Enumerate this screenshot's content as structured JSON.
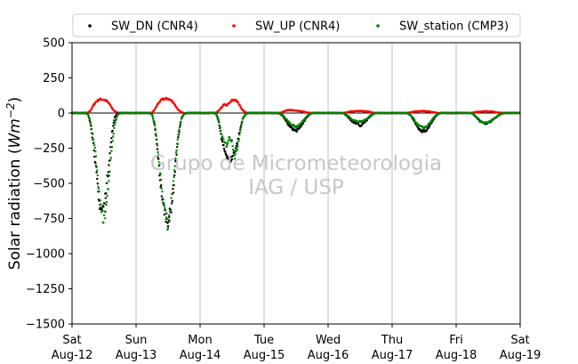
{
  "chart_data": {
    "type": "scatter",
    "title": "",
    "xlabel": "",
    "ylabel": "Solar radiation ($Wm{-2}$)",
    "ylabel_parts": {
      "main": "Solar radiation (",
      "math": "Wm",
      "sup": "−2",
      "close": ")"
    },
    "ylim": [
      -1500,
      500
    ],
    "xlim": [
      "2023-08-12",
      "2023-08-19"
    ],
    "y_ticks": [
      500,
      250,
      0,
      -250,
      -500,
      -750,
      -1000,
      -1250,
      -1500
    ],
    "y_tick_labels": [
      "500",
      "250",
      "0",
      "−250",
      "−500",
      "−750",
      "−1000",
      "−1250",
      "−1500"
    ],
    "x_tick_labels": [
      [
        "Sat",
        "Aug-12"
      ],
      [
        "Sun",
        "Aug-13"
      ],
      [
        "Mon",
        "Aug-14"
      ],
      [
        "Tue",
        "Aug-15"
      ],
      [
        "Wed",
        "Aug-16"
      ],
      [
        "Thu",
        "Aug-17"
      ],
      [
        "Fri",
        "Aug-18"
      ],
      [
        "Sat",
        "Aug-19"
      ]
    ],
    "grid": "vertical",
    "zero_line": true,
    "legend": {
      "placement": "top",
      "ncol": 3
    },
    "watermark": [
      "Grupo de Micrometeorologia",
      "IAG / USP"
    ],
    "days": [
      "Aug-12",
      "Aug-13",
      "Aug-14",
      "Aug-15",
      "Aug-16",
      "Aug-17",
      "Aug-18"
    ],
    "series": [
      {
        "name": "SW_DN (CNR4)",
        "color": "#000000",
        "x_hours": [
          0,
          5,
          6,
          7,
          8,
          9,
          10,
          11,
          12,
          13,
          14,
          15,
          16,
          17,
          18,
          19,
          24,
          29,
          30,
          31,
          32,
          33,
          34,
          35,
          36,
          37,
          38,
          39,
          40,
          41,
          42,
          43,
          48,
          53,
          54,
          55,
          56,
          57,
          58,
          59,
          60,
          61,
          62,
          63,
          64,
          65,
          66,
          67,
          72,
          77,
          78,
          79,
          80,
          81,
          82,
          83,
          84,
          85,
          86,
          87,
          88,
          89,
          90,
          91,
          96,
          101,
          102,
          103,
          104,
          105,
          106,
          107,
          108,
          109,
          110,
          111,
          112,
          113,
          114,
          115,
          120,
          125,
          126,
          127,
          128,
          129,
          130,
          131,
          132,
          133,
          134,
          135,
          136,
          137,
          138,
          139,
          144,
          149,
          150,
          151,
          152,
          153,
          154,
          155,
          156,
          157,
          158,
          159,
          160,
          161,
          162,
          163,
          168
        ],
        "values": [
          0,
          0,
          -10,
          -80,
          -220,
          -400,
          -620,
          -690,
          -660,
          -510,
          -320,
          -140,
          -30,
          -5,
          0,
          0,
          0,
          0,
          -10,
          -90,
          -260,
          -470,
          -640,
          -720,
          -760,
          -700,
          -540,
          -320,
          -150,
          -40,
          -5,
          0,
          0,
          0,
          -5,
          -60,
          -180,
          -260,
          -300,
          -340,
          -320,
          -270,
          -210,
          -120,
          -40,
          -10,
          0,
          0,
          0,
          0,
          -5,
          -20,
          -50,
          -80,
          -100,
          -120,
          -130,
          -110,
          -90,
          -60,
          -30,
          -10,
          0,
          0,
          0,
          0,
          -3,
          -20,
          -40,
          -60,
          -70,
          -80,
          -90,
          -80,
          -60,
          -40,
          -20,
          -5,
          0,
          0,
          0,
          0,
          -3,
          -20,
          -50,
          -80,
          -110,
          -130,
          -130,
          -120,
          -90,
          -60,
          -30,
          -10,
          0,
          0,
          0,
          0,
          -3,
          -20,
          -40,
          -60,
          -70,
          -75,
          -70,
          -60,
          -45,
          -30,
          -15,
          -5,
          0,
          0,
          0
        ]
      },
      {
        "name": "SW_UP (CNR4)",
        "color": "#ff0000",
        "x_hours": [
          0,
          5,
          6,
          7,
          8,
          9,
          10,
          11,
          12,
          13,
          14,
          15,
          16,
          17,
          18,
          19,
          24,
          29,
          30,
          31,
          32,
          33,
          34,
          35,
          36,
          37,
          38,
          39,
          40,
          41,
          42,
          43,
          48,
          53,
          54,
          55,
          56,
          57,
          58,
          59,
          60,
          61,
          62,
          63,
          64,
          65,
          66,
          67,
          72,
          77,
          78,
          79,
          80,
          81,
          82,
          83,
          84,
          85,
          86,
          87,
          88,
          89,
          90,
          91,
          96,
          101,
          102,
          103,
          104,
          105,
          106,
          107,
          108,
          109,
          110,
          111,
          112,
          113,
          114,
          115,
          120,
          125,
          126,
          127,
          128,
          129,
          130,
          131,
          132,
          133,
          134,
          135,
          136,
          137,
          138,
          139,
          144,
          149,
          150,
          151,
          152,
          153,
          154,
          155,
          156,
          157,
          158,
          159,
          160,
          161,
          162,
          163,
          168
        ],
        "values": [
          0,
          0,
          2,
          20,
          55,
          80,
          95,
          98,
          95,
          85,
          65,
          35,
          12,
          2,
          0,
          0,
          0,
          0,
          2,
          25,
          60,
          85,
          98,
          102,
          100,
          92,
          75,
          45,
          18,
          5,
          0,
          0,
          0,
          0,
          2,
          15,
          40,
          60,
          55,
          70,
          90,
          95,
          80,
          50,
          20,
          5,
          0,
          0,
          0,
          0,
          2,
          8,
          15,
          20,
          22,
          20,
          18,
          15,
          12,
          8,
          4,
          1,
          0,
          0,
          0,
          0,
          1,
          6,
          10,
          12,
          14,
          14,
          14,
          13,
          12,
          10,
          6,
          2,
          0,
          0,
          0,
          0,
          1,
          5,
          9,
          12,
          13,
          14,
          13,
          12,
          10,
          7,
          4,
          1,
          0,
          0,
          0,
          0,
          1,
          5,
          8,
          10,
          12,
          13,
          12,
          11,
          9,
          6,
          3,
          1,
          0,
          0,
          0
        ]
      },
      {
        "name": "SW_station (CMP3)",
        "color": "#008000",
        "x_hours": [
          0,
          5,
          6,
          7,
          8,
          9,
          10,
          11,
          12,
          13,
          14,
          15,
          16,
          17,
          18,
          19,
          24,
          29,
          30,
          31,
          32,
          33,
          34,
          35,
          36,
          37,
          38,
          39,
          40,
          41,
          42,
          43,
          48,
          53,
          54,
          55,
          56,
          57,
          58,
          59,
          60,
          61,
          62,
          63,
          64,
          65,
          66,
          67,
          72,
          77,
          78,
          79,
          80,
          81,
          82,
          83,
          84,
          85,
          86,
          87,
          88,
          89,
          90,
          91,
          96,
          101,
          102,
          103,
          104,
          105,
          106,
          107,
          108,
          109,
          110,
          111,
          112,
          113,
          114,
          115,
          120,
          125,
          126,
          127,
          128,
          129,
          130,
          131,
          132,
          133,
          134,
          135,
          136,
          137,
          138,
          139,
          144,
          149,
          150,
          151,
          152,
          153,
          154,
          155,
          156,
          157,
          158,
          159,
          160,
          161,
          162,
          163,
          168
        ],
        "values": [
          0,
          0,
          -10,
          -70,
          -180,
          -320,
          -560,
          -700,
          -760,
          -640,
          -440,
          -230,
          -80,
          -15,
          0,
          0,
          0,
          0,
          -10,
          -80,
          -230,
          -430,
          -600,
          -720,
          -800,
          -680,
          -500,
          -290,
          -130,
          -40,
          -5,
          0,
          0,
          0,
          -5,
          -50,
          -150,
          -210,
          -230,
          -170,
          -200,
          -310,
          -250,
          -130,
          -40,
          -10,
          0,
          0,
          0,
          0,
          -3,
          -15,
          -40,
          -60,
          -80,
          -90,
          -100,
          -85,
          -70,
          -50,
          -25,
          -8,
          0,
          0,
          0,
          0,
          -2,
          -15,
          -30,
          -45,
          -55,
          -60,
          -62,
          -58,
          -48,
          -32,
          -16,
          -4,
          0,
          0,
          0,
          0,
          -3,
          -18,
          -40,
          -70,
          -90,
          -100,
          -105,
          -95,
          -75,
          -50,
          -25,
          -8,
          0,
          0,
          0,
          0,
          -3,
          -18,
          -35,
          -55,
          -65,
          -70,
          -66,
          -56,
          -42,
          -28,
          -14,
          -4,
          0,
          0,
          0
        ]
      }
    ]
  }
}
